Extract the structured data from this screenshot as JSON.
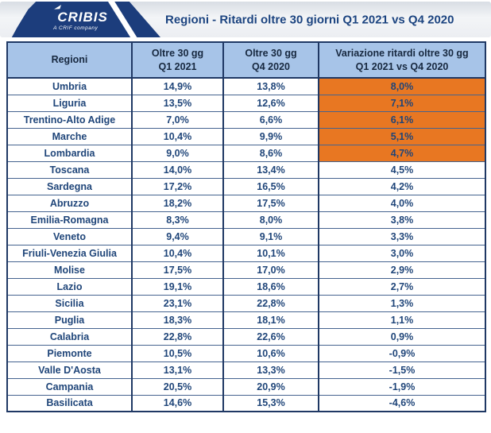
{
  "header": {
    "logo": {
      "brand": "CRIBIS",
      "tagline": "A CRIF company"
    },
    "title": "Regioni - Ritardi oltre 30 giorni Q1 2021 vs Q4 2020"
  },
  "colors": {
    "accent_orange": "#E87722",
    "header_blue": "#A7C4E8",
    "border_navy": "#1F3864",
    "text_blue": "#1F4579",
    "logo_navy": "#1C3D7C"
  },
  "table": {
    "columns": [
      {
        "label": "Regioni"
      },
      {
        "line1": "Oltre 30 gg",
        "line2": "Q1 2021"
      },
      {
        "line1": "Oltre 30 gg",
        "line2": "Q4 2020"
      },
      {
        "line1": "Variazione ritardi oltre 30 gg",
        "line2": "Q1 2021 vs Q4 2020"
      }
    ],
    "rows": [
      {
        "region": "Umbria",
        "q1": "14,9%",
        "q4": "13,8%",
        "variazione": "8,0%",
        "highlighted": true
      },
      {
        "region": "Liguria",
        "q1": "13,5%",
        "q4": "12,6%",
        "variazione": "7,1%",
        "highlighted": true
      },
      {
        "region": "Trentino-Alto Adige",
        "q1": "7,0%",
        "q4": "6,6%",
        "variazione": "6,1%",
        "highlighted": true
      },
      {
        "region": "Marche",
        "q1": "10,4%",
        "q4": "9,9%",
        "variazione": "5,1%",
        "highlighted": true
      },
      {
        "region": "Lombardia",
        "q1": "9,0%",
        "q4": "8,6%",
        "variazione": "4,7%",
        "highlighted": true
      },
      {
        "region": "Toscana",
        "q1": "14,0%",
        "q4": "13,4%",
        "variazione": "4,5%",
        "highlighted": false
      },
      {
        "region": "Sardegna",
        "q1": "17,2%",
        "q4": "16,5%",
        "variazione": "4,2%",
        "highlighted": false
      },
      {
        "region": "Abruzzo",
        "q1": "18,2%",
        "q4": "17,5%",
        "variazione": "4,0%",
        "highlighted": false
      },
      {
        "region": "Emilia-Romagna",
        "q1": "8,3%",
        "q4": "8,0%",
        "variazione": "3,8%",
        "highlighted": false
      },
      {
        "region": "Veneto",
        "q1": "9,4%",
        "q4": "9,1%",
        "variazione": "3,3%",
        "highlighted": false
      },
      {
        "region": "Friuli-Venezia Giulia",
        "q1": "10,4%",
        "q4": "10,1%",
        "variazione": "3,0%",
        "highlighted": false
      },
      {
        "region": "Molise",
        "q1": "17,5%",
        "q4": "17,0%",
        "variazione": "2,9%",
        "highlighted": false
      },
      {
        "region": "Lazio",
        "q1": "19,1%",
        "q4": "18,6%",
        "variazione": "2,7%",
        "highlighted": false
      },
      {
        "region": "Sicilia",
        "q1": "23,1%",
        "q4": "22,8%",
        "variazione": "1,3%",
        "highlighted": false
      },
      {
        "region": "Puglia",
        "q1": "18,3%",
        "q4": "18,1%",
        "variazione": "1,1%",
        "highlighted": false
      },
      {
        "region": "Calabria",
        "q1": "22,8%",
        "q4": "22,6%",
        "variazione": "0,9%",
        "highlighted": false
      },
      {
        "region": "Piemonte",
        "q1": "10,5%",
        "q4": "10,6%",
        "variazione": "-0,9%",
        "highlighted": false
      },
      {
        "region": "Valle D'Aosta",
        "q1": "13,1%",
        "q4": "13,3%",
        "variazione": "-1,5%",
        "highlighted": false
      },
      {
        "region": "Campania",
        "q1": "20,5%",
        "q4": "20,9%",
        "variazione": "-1,9%",
        "highlighted": false
      },
      {
        "region": "Basilicata",
        "q1": "14,6%",
        "q4": "15,3%",
        "variazione": "-4,6%",
        "highlighted": false
      }
    ]
  },
  "chart_data": {
    "type": "table",
    "title": "Regioni - Ritardi oltre 30 giorni Q1 2021 vs Q4 2020",
    "columns": [
      "Regioni",
      "Oltre 30 gg Q1 2021",
      "Oltre 30 gg Q4 2020",
      "Variazione ritardi oltre 30 gg Q1 2021 vs Q4 2020"
    ],
    "categories": [
      "Umbria",
      "Liguria",
      "Trentino-Alto Adige",
      "Marche",
      "Lombardia",
      "Toscana",
      "Sardegna",
      "Abruzzo",
      "Emilia-Romagna",
      "Veneto",
      "Friuli-Venezia Giulia",
      "Molise",
      "Lazio",
      "Sicilia",
      "Puglia",
      "Calabria",
      "Piemonte",
      "Valle D'Aosta",
      "Campania",
      "Basilicata"
    ],
    "series": [
      {
        "name": "Oltre 30 gg Q1 2021",
        "values": [
          14.9,
          13.5,
          7.0,
          10.4,
          9.0,
          14.0,
          17.2,
          18.2,
          8.3,
          9.4,
          10.4,
          17.5,
          19.1,
          23.1,
          18.3,
          22.8,
          10.5,
          13.1,
          20.5,
          14.6
        ]
      },
      {
        "name": "Oltre 30 gg Q4 2020",
        "values": [
          13.8,
          12.6,
          6.6,
          9.9,
          8.6,
          13.4,
          16.5,
          17.5,
          8.0,
          9.1,
          10.1,
          17.0,
          18.6,
          22.8,
          18.1,
          22.6,
          10.6,
          13.3,
          20.9,
          15.3
        ]
      },
      {
        "name": "Variazione ritardi oltre 30 gg Q1 2021 vs Q4 2020",
        "values": [
          8.0,
          7.1,
          6.1,
          5.1,
          4.7,
          4.5,
          4.2,
          4.0,
          3.8,
          3.3,
          3.0,
          2.9,
          2.7,
          1.3,
          1.1,
          0.9,
          -0.9,
          -1.5,
          -1.9,
          -4.6
        ]
      }
    ],
    "units": "percent",
    "highlighted_rows": [
      "Umbria",
      "Liguria",
      "Trentino-Alto Adige",
      "Marche",
      "Lombardia"
    ],
    "highlight_color": "#E87722"
  }
}
